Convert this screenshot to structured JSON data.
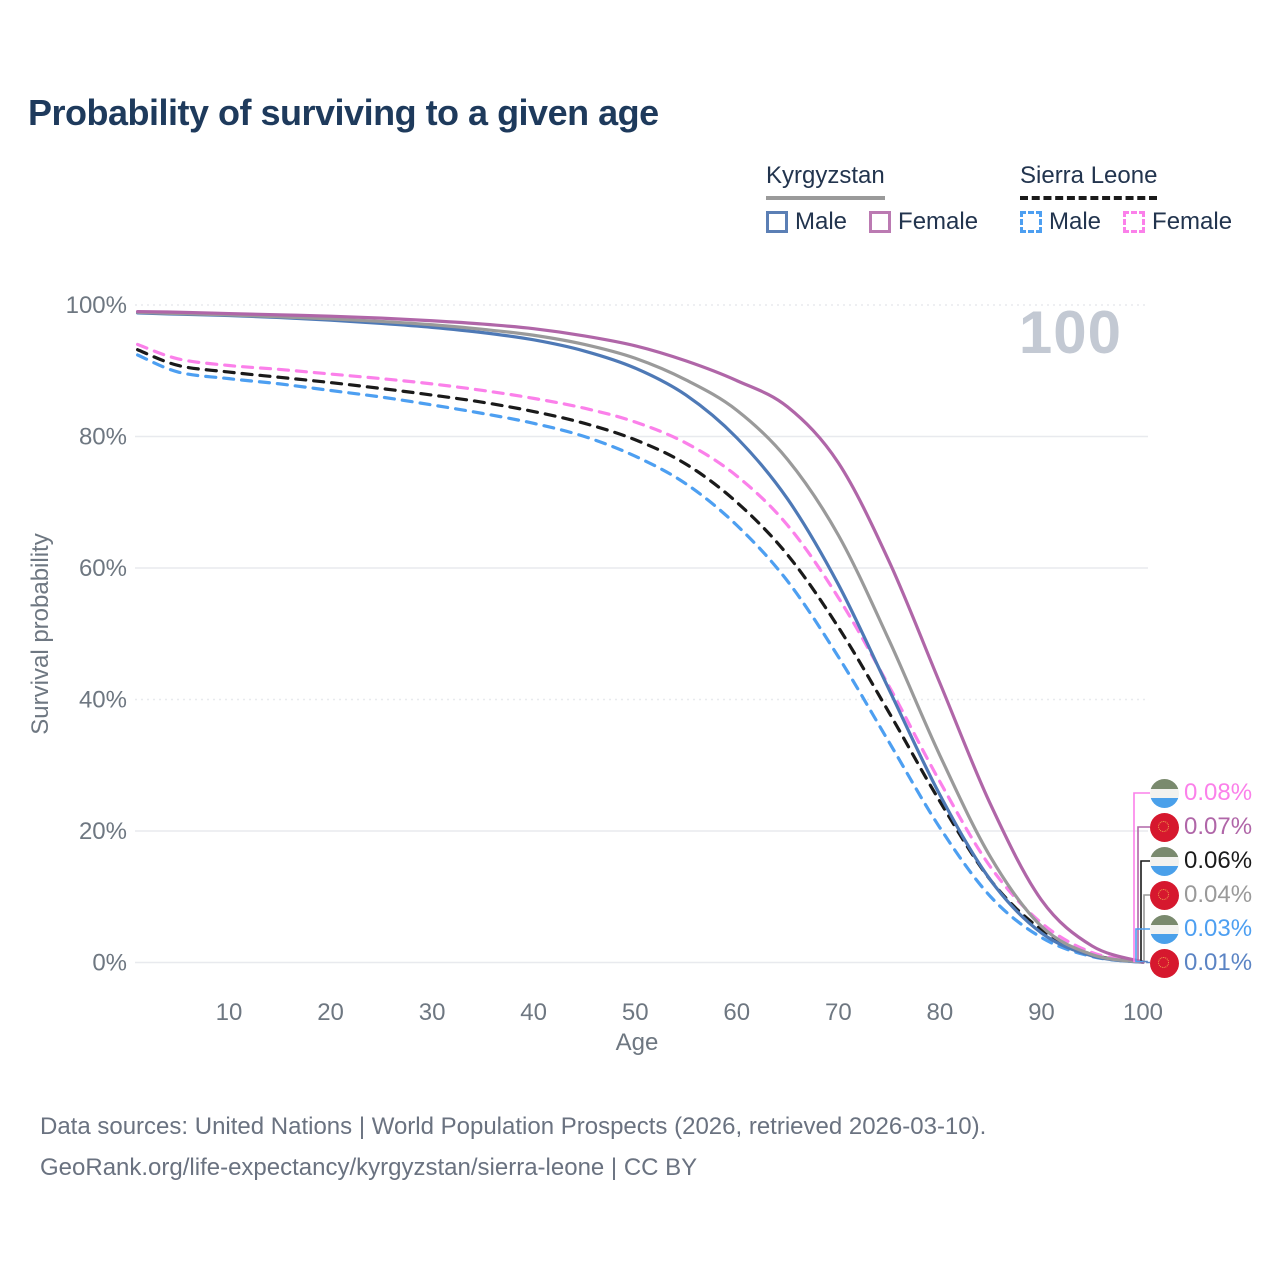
{
  "title": "Probability of surviving to a given age",
  "hover_age_label": "100",
  "legend": {
    "groups": [
      {
        "label": "Kyrgyzstan",
        "underline_style": "solid",
        "underline_color": "#9a9a9a",
        "items": [
          {
            "label": "Male",
            "color": "#4e79b6",
            "dashed": false
          },
          {
            "label": "Female",
            "color": "#b066a8",
            "dashed": false
          }
        ]
      },
      {
        "label": "Sierra Leone",
        "underline_style": "dashed",
        "underline_color": "#1a1a1a",
        "items": [
          {
            "label": "Male",
            "color": "#4d9ff1",
            "dashed": true
          },
          {
            "label": "Female",
            "color": "#fb80ea",
            "dashed": true
          }
        ]
      }
    ]
  },
  "chart_data": {
    "type": "line",
    "title": "Probability of surviving to a given age",
    "xlabel": "Age",
    "ylabel": "Survival probability",
    "xlim": [
      0,
      100
    ],
    "ylim": [
      0,
      100
    ],
    "x_ticks": [
      10,
      20,
      30,
      40,
      50,
      60,
      70,
      80,
      90,
      100
    ],
    "y_ticks": [
      {
        "value": 0,
        "label": "0%"
      },
      {
        "value": 20,
        "label": "20%"
      },
      {
        "value": 40,
        "label": "40%",
        "dotted": true
      },
      {
        "value": 60,
        "label": "60%"
      },
      {
        "value": 80,
        "label": "80%"
      },
      {
        "value": 100,
        "label": "100%",
        "dotted": true
      }
    ],
    "grid": true,
    "legend_position": "top-right",
    "series": [
      {
        "name": "Sierra Leone Male",
        "country": "Sierra Leone",
        "sex": "Male",
        "color": "#4d9ff1",
        "dashed": true,
        "points": [
          [
            1,
            92.4
          ],
          [
            5,
            89.8
          ],
          [
            10,
            88.8
          ],
          [
            15,
            88.0
          ],
          [
            20,
            87.0
          ],
          [
            25,
            86.0
          ],
          [
            30,
            84.8
          ],
          [
            35,
            83.5
          ],
          [
            40,
            82.0
          ],
          [
            45,
            80.0
          ],
          [
            50,
            77.0
          ],
          [
            55,
            72.8
          ],
          [
            60,
            66.5
          ],
          [
            65,
            58.0
          ],
          [
            70,
            46.5
          ],
          [
            75,
            33.5
          ],
          [
            80,
            20.5
          ],
          [
            85,
            10.0
          ],
          [
            90,
            3.8
          ],
          [
            95,
            0.9
          ],
          [
            100,
            0.03
          ]
        ]
      },
      {
        "name": "Sierra Leone Both sexes",
        "country": "Sierra Leone",
        "sex": "Both",
        "color": "#1a1a1a",
        "dashed": true,
        "points": [
          [
            1,
            93.2
          ],
          [
            5,
            90.8
          ],
          [
            10,
            89.8
          ],
          [
            15,
            89.0
          ],
          [
            20,
            88.2
          ],
          [
            25,
            87.3
          ],
          [
            30,
            86.3
          ],
          [
            35,
            85.2
          ],
          [
            40,
            83.8
          ],
          [
            45,
            82.0
          ],
          [
            50,
            79.5
          ],
          [
            55,
            75.8
          ],
          [
            60,
            70.0
          ],
          [
            65,
            62.0
          ],
          [
            70,
            51.0
          ],
          [
            75,
            38.0
          ],
          [
            80,
            24.5
          ],
          [
            85,
            12.5
          ],
          [
            90,
            5.0
          ],
          [
            95,
            1.2
          ],
          [
            100,
            0.06
          ]
        ]
      },
      {
        "name": "Sierra Leone Female",
        "country": "Sierra Leone",
        "sex": "Female",
        "color": "#fb80ea",
        "dashed": true,
        "points": [
          [
            1,
            94.0
          ],
          [
            5,
            91.8
          ],
          [
            10,
            90.8
          ],
          [
            15,
            90.2
          ],
          [
            20,
            89.5
          ],
          [
            25,
            88.8
          ],
          [
            30,
            88.0
          ],
          [
            35,
            87.0
          ],
          [
            40,
            85.8
          ],
          [
            45,
            84.3
          ],
          [
            50,
            82.2
          ],
          [
            55,
            79.0
          ],
          [
            60,
            74.0
          ],
          [
            65,
            66.5
          ],
          [
            70,
            55.5
          ],
          [
            75,
            42.0
          ],
          [
            80,
            27.5
          ],
          [
            85,
            14.5
          ],
          [
            90,
            6.0
          ],
          [
            95,
            1.5
          ],
          [
            100,
            0.08
          ]
        ]
      },
      {
        "name": "Kyrgyzstan Male",
        "country": "Kyrgyzstan",
        "sex": "Male",
        "color": "#4e79b6",
        "dashed": false,
        "points": [
          [
            1,
            98.8
          ],
          [
            5,
            98.6
          ],
          [
            10,
            98.4
          ],
          [
            15,
            98.1
          ],
          [
            20,
            97.7
          ],
          [
            25,
            97.2
          ],
          [
            30,
            96.6
          ],
          [
            35,
            95.8
          ],
          [
            40,
            94.7
          ],
          [
            45,
            93.0
          ],
          [
            50,
            90.4
          ],
          [
            55,
            86.3
          ],
          [
            60,
            79.8
          ],
          [
            65,
            70.5
          ],
          [
            70,
            57.5
          ],
          [
            75,
            41.5
          ],
          [
            80,
            25.5
          ],
          [
            85,
            12.5
          ],
          [
            90,
            4.5
          ],
          [
            95,
            1.0
          ],
          [
            100,
            0.01
          ]
        ]
      },
      {
        "name": "Kyrgyzstan Both sexes",
        "country": "Kyrgyzstan",
        "sex": "Both",
        "color": "#9a9a9a",
        "dashed": false,
        "points": [
          [
            1,
            98.9
          ],
          [
            5,
            98.7
          ],
          [
            10,
            98.5
          ],
          [
            15,
            98.2
          ],
          [
            20,
            97.9
          ],
          [
            25,
            97.5
          ],
          [
            30,
            97.0
          ],
          [
            35,
            96.3
          ],
          [
            40,
            95.4
          ],
          [
            45,
            94.0
          ],
          [
            50,
            91.9
          ],
          [
            55,
            88.6
          ],
          [
            60,
            84.0
          ],
          [
            65,
            76.5
          ],
          [
            70,
            65.0
          ],
          [
            75,
            49.0
          ],
          [
            80,
            31.5
          ],
          [
            85,
            16.0
          ],
          [
            90,
            5.5
          ],
          [
            95,
            1.2
          ],
          [
            100,
            0.04
          ]
        ]
      },
      {
        "name": "Kyrgyzstan Female",
        "country": "Kyrgyzstan",
        "sex": "Female",
        "color": "#b066a8",
        "dashed": false,
        "points": [
          [
            1,
            99.0
          ],
          [
            5,
            98.9
          ],
          [
            10,
            98.7
          ],
          [
            15,
            98.5
          ],
          [
            20,
            98.3
          ],
          [
            25,
            98.0
          ],
          [
            30,
            97.6
          ],
          [
            35,
            97.1
          ],
          [
            40,
            96.4
          ],
          [
            45,
            95.3
          ],
          [
            50,
            93.8
          ],
          [
            55,
            91.5
          ],
          [
            60,
            88.5
          ],
          [
            65,
            84.5
          ],
          [
            70,
            76.0
          ],
          [
            75,
            61.0
          ],
          [
            80,
            42.5
          ],
          [
            85,
            24.0
          ],
          [
            90,
            9.5
          ],
          [
            95,
            2.5
          ],
          [
            100,
            0.07
          ]
        ]
      }
    ]
  },
  "end_labels": [
    {
      "value": "0.08%",
      "color": "#fb80ea",
      "flag": "sierra-leone",
      "series": "Sierra Leone Female"
    },
    {
      "value": "0.07%",
      "color": "#b066a8",
      "flag": "kyrgyzstan",
      "series": "Kyrgyzstan Female"
    },
    {
      "value": "0.06%",
      "color": "#1a1a1a",
      "flag": "sierra-leone",
      "series": "Sierra Leone Both sexes"
    },
    {
      "value": "0.04%",
      "color": "#9a9a9a",
      "flag": "kyrgyzstan",
      "series": "Kyrgyzstan Both sexes"
    },
    {
      "value": "0.03%",
      "color": "#4d9ff1",
      "flag": "sierra-leone",
      "series": "Sierra Leone Male"
    },
    {
      "value": "0.01%",
      "color": "#5b84c4",
      "flag": "kyrgyzstan",
      "series": "Kyrgyzstan Male"
    }
  ],
  "footer": {
    "line1": "Data sources: United Nations | World Population Prospects (2026, retrieved 2026-03-10).",
    "line2": "GeoRank.org/life-expectancy/kyrgyzstan/sierra-leone | CC BY"
  }
}
